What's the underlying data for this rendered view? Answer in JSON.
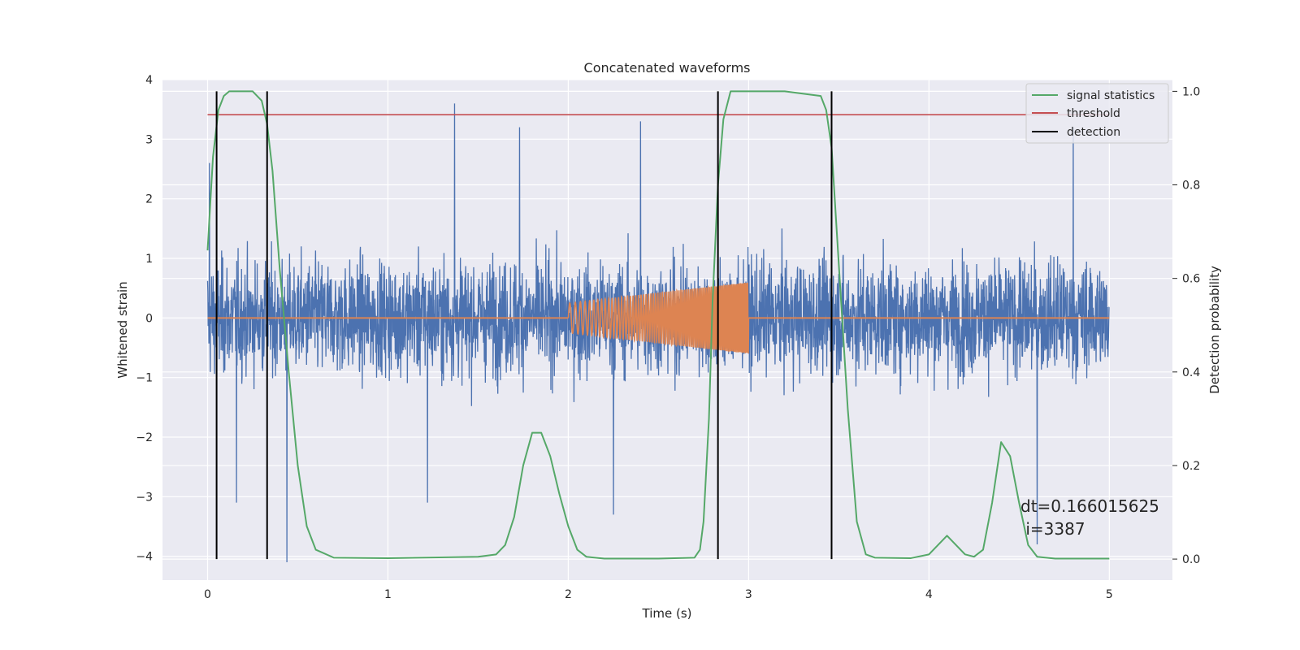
{
  "chart_data": {
    "type": "line",
    "title": "Concatenated waveforms",
    "xlabel": "Time (s)",
    "ylabel": "Whitened strain",
    "y2label": "Detection probability",
    "xlim": [
      -0.25,
      5.35
    ],
    "ylim": [
      -4.4,
      4.0
    ],
    "y2lim": [
      -0.045,
      1.025
    ],
    "xticks": [
      0,
      1,
      2,
      3,
      4,
      5
    ],
    "yticks": [
      -4,
      -3,
      -2,
      -1,
      0,
      1,
      2,
      3,
      4
    ],
    "y2ticks": [
      0.0,
      0.2,
      0.4,
      0.6,
      0.8,
      1.0
    ],
    "grid": true,
    "legend_position": "top-right",
    "legend": [
      {
        "label": "signal statistics",
        "color": "#55a868"
      },
      {
        "label": "threshold",
        "color": "#c44e52"
      },
      {
        "label": "detection",
        "color": "#000000"
      }
    ],
    "series": [
      {
        "kind": "noise",
        "color": "#4c72b0",
        "x_range": [
          0,
          5
        ],
        "envelope_typical": 1.2,
        "peaks": [
          {
            "x": 0.01,
            "y": 2.6
          },
          {
            "x": 1.37,
            "y": 3.6
          },
          {
            "x": 1.73,
            "y": 3.2
          },
          {
            "x": 2.4,
            "y": 3.3
          },
          {
            "x": 4.8,
            "y": 3.2
          },
          {
            "x": 0.44,
            "y": -4.1
          },
          {
            "x": 0.16,
            "y": -3.1
          },
          {
            "x": 1.22,
            "y": -3.1
          },
          {
            "x": 2.25,
            "y": -3.3
          },
          {
            "x": 4.6,
            "y": -3.8
          }
        ]
      },
      {
        "kind": "chirp",
        "color": "#dd8452",
        "x_range": [
          2.0,
          3.0
        ],
        "baseline_range": [
          0,
          5
        ],
        "amplitude_start": 0.25,
        "amplitude_end": 0.6,
        "freq_start_hz": 30,
        "freq_end_hz": 130
      },
      {
        "name": "signal statistics",
        "axis": "y2",
        "color": "#55a868",
        "x": [
          0.0,
          0.03,
          0.06,
          0.09,
          0.12,
          0.15,
          0.2,
          0.25,
          0.3,
          0.33,
          0.36,
          0.4,
          0.45,
          0.5,
          0.55,
          0.6,
          0.7,
          1.0,
          1.5,
          1.6,
          1.65,
          1.7,
          1.75,
          1.8,
          1.85,
          1.9,
          1.95,
          2.0,
          2.05,
          2.1,
          2.2,
          2.5,
          2.7,
          2.73,
          2.75,
          2.78,
          2.8,
          2.83,
          2.86,
          2.9,
          2.95,
          3.0,
          3.2,
          3.4,
          3.43,
          3.46,
          3.5,
          3.55,
          3.6,
          3.65,
          3.7,
          3.9,
          4.0,
          4.05,
          4.1,
          4.15,
          4.2,
          4.25,
          4.3,
          4.35,
          4.4,
          4.45,
          4.5,
          4.55,
          4.6,
          4.7,
          5.0
        ],
        "y": [
          0.66,
          0.86,
          0.96,
          0.99,
          1.0,
          1.0,
          1.0,
          1.0,
          0.98,
          0.93,
          0.83,
          0.62,
          0.4,
          0.2,
          0.07,
          0.02,
          0.003,
          0.002,
          0.005,
          0.01,
          0.03,
          0.09,
          0.2,
          0.27,
          0.27,
          0.22,
          0.14,
          0.07,
          0.02,
          0.005,
          0.001,
          0.001,
          0.003,
          0.02,
          0.08,
          0.3,
          0.55,
          0.8,
          0.94,
          1.0,
          1.0,
          1.0,
          1.0,
          0.99,
          0.96,
          0.88,
          0.63,
          0.32,
          0.08,
          0.01,
          0.003,
          0.002,
          0.01,
          0.03,
          0.05,
          0.03,
          0.01,
          0.005,
          0.02,
          0.12,
          0.25,
          0.22,
          0.12,
          0.03,
          0.005,
          0.001,
          0.001
        ]
      },
      {
        "name": "threshold",
        "axis": "y2",
        "color": "#c44e52",
        "x": [
          0,
          5
        ],
        "y": [
          0.95,
          0.95
        ]
      }
    ],
    "detections": [
      0.05,
      0.33,
      2.83,
      3.46
    ],
    "annotation": {
      "x": 4.5,
      "y": -3.3,
      "text_line1": "dt=0.166015625",
      "text_line2": " i=3387"
    }
  }
}
